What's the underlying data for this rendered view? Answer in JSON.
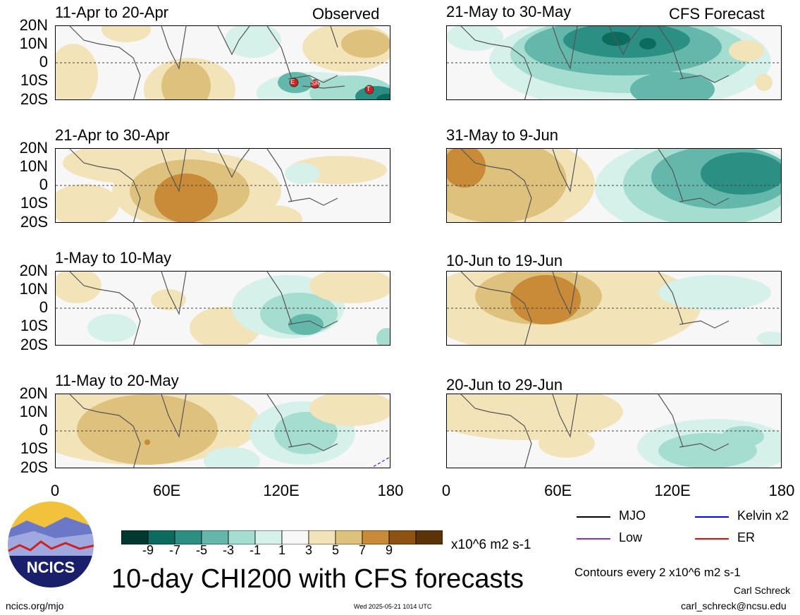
{
  "header": {
    "left_label": "Observed",
    "right_label": "CFS Forecast"
  },
  "panels_left": [
    {
      "title": "11-Apr to 20-Apr"
    },
    {
      "title": "21-Apr to 30-Apr"
    },
    {
      "title": "1-May to 10-May"
    },
    {
      "title": "11-May to 20-May"
    }
  ],
  "panels_right": [
    {
      "title": "21-May to 30-May"
    },
    {
      "title": "31-May to 9-Jun"
    },
    {
      "title": "10-Jun to 19-Jun"
    },
    {
      "title": "20-Jun to 29-Jun"
    }
  ],
  "lat_labels": [
    "20N",
    "10N",
    "0",
    "10S",
    "20S"
  ],
  "lon_labels": [
    "0",
    "60E",
    "120E",
    "180"
  ],
  "markers": [
    "E",
    "SR",
    "T"
  ],
  "colorbar": {
    "labels": [
      "-9",
      "-7",
      "-5",
      "-3",
      "-1",
      "1",
      "3",
      "5",
      "7",
      "9"
    ],
    "colors": [
      "#01392f",
      "#0a6b5e",
      "#2b8f84",
      "#64b8ab",
      "#a6ddd1",
      "#d6f0ea",
      "#f7f7f7",
      "#f3e3b8",
      "#dfc17e",
      "#c98b37",
      "#8e5312",
      "#5c3307"
    ],
    "units": "x10^6 m2 s-1"
  },
  "legend": {
    "mjo": "MJO",
    "kelvin": "Kelvin x2",
    "low": "Low",
    "er": "ER",
    "mjo_color": "#000000",
    "kelvin_color": "#0000ff",
    "low_color": "#8a2be2",
    "er_color": "#ff0000"
  },
  "contours_note": "Contours every 2 x10^6 m2 s-1",
  "main_title": "10-day CHI200 with CFS forecasts",
  "logo_text": "NCICS",
  "footer": {
    "url": "ncics.org/mjo",
    "timestamp": "Wed 2025-05-21 1014 UTC",
    "author": "Carl Schreck",
    "email": "carl_schreck@ncsu.edu"
  }
}
